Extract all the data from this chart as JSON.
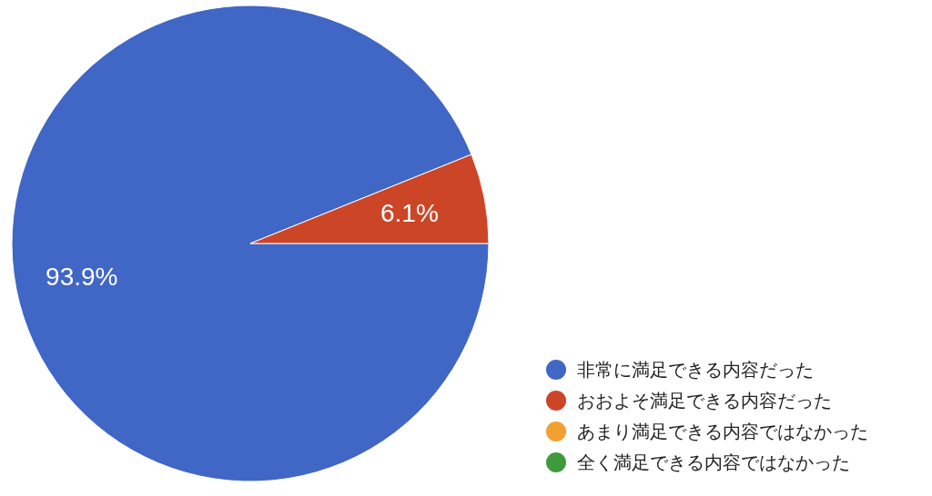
{
  "chart_data": {
    "type": "pie",
    "categories": [
      "非常に満足できる内容だった",
      "おおよそ満足できる内容だった",
      "あまり満足できる内容ではなかった",
      "全く満足できる内容ではなかった"
    ],
    "values": [
      93.9,
      6.1,
      0,
      0
    ],
    "colors": [
      "#4066c6",
      "#cc4526",
      "#f1a032",
      "#3f9a3c"
    ],
    "value_labels": [
      "93.9%",
      "6.1%",
      null,
      null
    ],
    "legend": "bottom right"
  }
}
